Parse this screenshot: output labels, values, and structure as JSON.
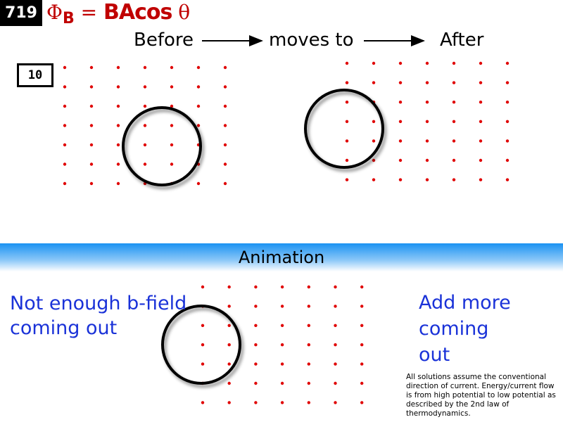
{
  "slide_number": "719",
  "formula": {
    "phi": "Φ",
    "sub": "B",
    "eq": " = ",
    "ba": "BA",
    "cos": "cos",
    "theta": " θ"
  },
  "header": {
    "before": "Before",
    "moves_to": "moves to",
    "after": "After"
  },
  "problem_number": "10",
  "band_label": "Animation",
  "left_caption": [
    "Not enough b-field",
    "coming out"
  ],
  "right_caption": [
    "Add more",
    "coming",
    "out"
  ],
  "note": "All solutions assume the conventional direction of current. Energy/current flow is from high potential to low potential as described by the 2nd law of thermodynamics.",
  "colors": {
    "field_dot": "#e00000",
    "formula": "#c00000",
    "caption": "#1a32d8",
    "band": "#1a92f2"
  }
}
